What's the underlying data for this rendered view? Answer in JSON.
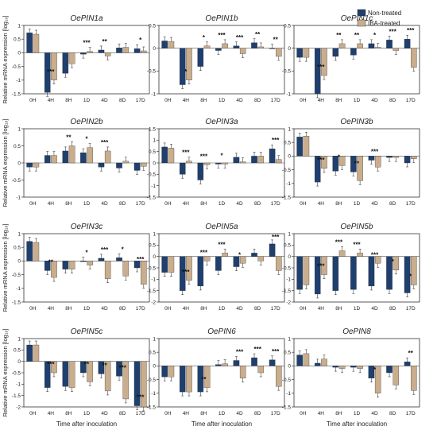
{
  "legend": {
    "items": [
      {
        "label": "Non-treated",
        "color": "#1f3f6e"
      },
      {
        "label": "IBA-treated",
        "color": "#c9ad8d"
      }
    ]
  },
  "chart_data": [
    {
      "type": "bar",
      "title": "OePIN1a",
      "categories": [
        "0H",
        "4H",
        "8H",
        "1D",
        "4D",
        "8D",
        "17D"
      ],
      "ylim": [
        -1.5,
        1
      ],
      "ticks": [
        "-1.5",
        "-1",
        "-0.5",
        "0",
        "0.5",
        "1"
      ],
      "series": [
        {
          "name": "Non-treated",
          "values": [
            0.73,
            -1.45,
            -0.75,
            -0.05,
            0.1,
            0.18,
            0.15
          ]
        },
        {
          "name": "IBA-treated",
          "values": [
            0.68,
            -1.0,
            -0.4,
            0.05,
            -0.12,
            0.2,
            0.07
          ]
        }
      ],
      "stars": [
        "",
        "***",
        "",
        "***",
        "**",
        "",
        "*"
      ]
    },
    {
      "type": "bar",
      "title": "OePIN1b",
      "categories": [
        "0H",
        "4H",
        "8H",
        "1D",
        "4D",
        "8D",
        "17D"
      ],
      "ylim": [
        -1,
        0.5
      ],
      "ticks": [
        "-1",
        "-0.5",
        "0",
        "0.5"
      ],
      "series": [
        {
          "name": "Non-treated",
          "values": [
            0.16,
            -0.8,
            -0.4,
            -0.05,
            0.05,
            0.12,
            0.0
          ]
        },
        {
          "name": "IBA-treated",
          "values": [
            0.15,
            -0.7,
            0.05,
            0.1,
            -0.12,
            0.03,
            -0.18
          ]
        }
      ],
      "stars": [
        "",
        "*",
        "*",
        "***",
        "***",
        "**",
        "**"
      ]
    },
    {
      "type": "bar",
      "title": "OePIN1c",
      "categories": [
        "0H",
        "4H",
        "8H",
        "1D",
        "4D",
        "8D",
        "17D"
      ],
      "ylim": [
        -1,
        0.5
      ],
      "ticks": [
        "-1",
        "-0.5",
        "0",
        "0.5"
      ],
      "series": [
        {
          "name": "Non-treated",
          "values": [
            -0.2,
            -1.0,
            -0.18,
            -0.15,
            0.1,
            0.18,
            0.2
          ]
        },
        {
          "name": "IBA-treated",
          "values": [
            -0.2,
            -0.6,
            0.1,
            0.1,
            0.02,
            -0.05,
            -0.42
          ]
        }
      ],
      "stars": [
        "",
        "***",
        "**",
        "**",
        "*",
        "***",
        "***"
      ]
    },
    {
      "type": "bar",
      "title": "OePIN2b",
      "categories": [
        "0H",
        "4H",
        "8H",
        "1D",
        "4D",
        "8D",
        "17D"
      ],
      "ylim": [
        -1,
        1
      ],
      "ticks": [
        "-1",
        "-0.5",
        "0",
        "0.5",
        "1"
      ],
      "series": [
        {
          "name": "Non-treated",
          "values": [
            -0.12,
            0.22,
            0.35,
            0.3,
            -0.12,
            -0.15,
            -0.22
          ]
        },
        {
          "name": "IBA-treated",
          "values": [
            -0.12,
            0.22,
            0.5,
            0.45,
            0.35,
            0.05,
            -0.1
          ]
        }
      ],
      "stars": [
        "",
        "",
        "**",
        "*",
        "***",
        "",
        ""
      ]
    },
    {
      "type": "bar",
      "title": "OePIN3a",
      "categories": [
        "0H",
        "4H",
        "8H",
        "1D",
        "4D",
        "8D",
        "17D"
      ],
      "ylim": [
        -1.5,
        1.5
      ],
      "ticks": [
        "-1.5",
        "-1",
        "-0.5",
        "0",
        "0.5",
        "1",
        "1.5"
      ],
      "series": [
        {
          "name": "Non-treated",
          "values": [
            0.7,
            -0.5,
            -0.75,
            -0.05,
            0.25,
            0.3,
            0.62
          ]
        },
        {
          "name": "IBA-treated",
          "values": [
            0.65,
            0.08,
            -0.08,
            -0.05,
            0.05,
            0.3,
            0.15
          ]
        }
      ],
      "stars": [
        "",
        "***",
        "***",
        "*",
        "",
        "",
        "***"
      ]
    },
    {
      "type": "bar",
      "title": "OePIN3b",
      "categories": [
        "0H",
        "4H",
        "8H",
        "1D",
        "4D",
        "8D",
        "17D"
      ],
      "ylim": [
        -1.5,
        1
      ],
      "ticks": [
        "-1.5",
        "-1",
        "-0.5",
        "0",
        "0.5",
        "1"
      ],
      "series": [
        {
          "name": "Non-treated",
          "values": [
            0.7,
            -0.95,
            -0.55,
            -0.58,
            -0.15,
            -0.05,
            -0.25
          ]
        },
        {
          "name": "IBA-treated",
          "values": [
            0.73,
            -0.45,
            -0.35,
            -0.9,
            -0.4,
            -0.05,
            -0.1
          ]
        }
      ],
      "stars": [
        "",
        "***",
        "*",
        "**",
        "***",
        "",
        ""
      ]
    },
    {
      "type": "bar",
      "title": "OePIN3c",
      "categories": [
        "0H",
        "4H",
        "8H",
        "1D",
        "4D",
        "8D",
        "17D"
      ],
      "ylim": [
        -1.5,
        1
      ],
      "ticks": [
        "-1.5",
        "-1",
        "-0.5",
        "0",
        "0.5",
        "1"
      ],
      "series": [
        {
          "name": "Non-treated",
          "values": [
            0.72,
            -0.35,
            -0.3,
            0.0,
            0.1,
            0.12,
            -0.25
          ]
        },
        {
          "name": "IBA-treated",
          "values": [
            0.68,
            -0.6,
            -0.3,
            -0.15,
            -0.65,
            -0.55,
            -0.85
          ]
        }
      ],
      "stars": [
        "",
        "**",
        "",
        "*",
        "***",
        "*",
        "***"
      ]
    },
    {
      "type": "bar",
      "title": "OePIN5a",
      "categories": [
        "0H",
        "4H",
        "8H",
        "1D",
        "4D",
        "8D",
        "17D"
      ],
      "ylim": [
        -2,
        1
      ],
      "ticks": [
        "-2",
        "-1.5",
        "-1",
        "-0.5",
        "0",
        "0.5",
        "1"
      ],
      "series": [
        {
          "name": "Non-treated",
          "values": [
            -0.7,
            -1.5,
            -1.3,
            -0.62,
            -0.45,
            0.15,
            0.55
          ]
        },
        {
          "name": "IBA-treated",
          "values": [
            -0.7,
            -1.05,
            -0.2,
            0.15,
            -0.3,
            -0.2,
            -0.62
          ]
        }
      ],
      "stars": [
        "",
        "***",
        "***",
        "***",
        "*",
        "",
        "***"
      ]
    },
    {
      "type": "bar",
      "title": "OePIN5b",
      "categories": [
        "0H",
        "4H",
        "8H",
        "1D",
        "4D",
        "8D",
        "17D"
      ],
      "ylim": [
        -2,
        1
      ],
      "ticks": [
        "-2",
        "-1.5",
        "-1",
        "-0.5",
        "0",
        "0.5",
        "1"
      ],
      "series": [
        {
          "name": "Non-treated",
          "values": [
            -1.45,
            -1.65,
            -1.5,
            -1.45,
            -1.3,
            -1.45,
            -1.6
          ]
        },
        {
          "name": "IBA-treated",
          "values": [
            -1.25,
            -0.8,
            0.25,
            0.15,
            -0.3,
            -0.6,
            -1.25
          ]
        }
      ],
      "stars": [
        "",
        "***",
        "***",
        "***",
        "***",
        "*",
        "*"
      ]
    },
    {
      "type": "bar",
      "title": "OePIN5c",
      "categories": [
        "0H",
        "4H",
        "8H",
        "1D",
        "4D",
        "8D",
        "17D"
      ],
      "ylim": [
        -2,
        1
      ],
      "ticks": [
        "-2",
        "-1.5",
        "-1",
        "-0.5",
        "0",
        "0.5",
        "1"
      ],
      "series": [
        {
          "name": "Non-treated",
          "values": [
            0.72,
            -1.15,
            -1.1,
            -0.5,
            -0.55,
            -0.65,
            -1.95
          ]
        },
        {
          "name": "IBA-treated",
          "values": [
            0.72,
            -0.5,
            -1.15,
            -0.9,
            -1.3,
            -1.65,
            -2.0
          ]
        }
      ],
      "stars": [
        "",
        "***",
        "",
        "**",
        "**",
        "***",
        "***"
      ]
    },
    {
      "type": "bar",
      "title": "OePIN6",
      "categories": [
        "0H",
        "4H",
        "8H",
        "1D",
        "4D",
        "8D",
        "17D"
      ],
      "ylim": [
        -1.5,
        1
      ],
      "ticks": [
        "-1.5",
        "-1",
        "-0.5",
        "0",
        "0.5",
        "1"
      ],
      "series": [
        {
          "name": "Non-treated",
          "values": [
            -0.4,
            -0.95,
            -0.95,
            0.05,
            0.2,
            0.3,
            0.22
          ]
        },
        {
          "name": "IBA-treated",
          "values": [
            -0.4,
            -0.95,
            -0.8,
            0.08,
            -0.45,
            -0.25,
            -0.75
          ]
        }
      ],
      "stars": [
        "",
        "",
        "**",
        "",
        "***",
        "***",
        "***"
      ]
    },
    {
      "type": "bar",
      "title": "OePIN8",
      "categories": [
        "0H",
        "4H",
        "8H",
        "1D",
        "4D",
        "8D",
        "17D"
      ],
      "ylim": [
        -1.5,
        1
      ],
      "ticks": [
        "-1.5",
        "-1",
        "-0.5",
        "0",
        "0.5",
        "1"
      ],
      "series": [
        {
          "name": "Non-treated",
          "values": [
            0.4,
            0.1,
            -0.05,
            -0.05,
            -0.45,
            -0.25,
            0.15
          ]
        },
        {
          "name": "IBA-treated",
          "values": [
            0.45,
            0.25,
            -0.1,
            -0.1,
            -1.0,
            -0.7,
            -0.9
          ]
        }
      ],
      "stars": [
        "",
        "",
        "",
        "",
        "*",
        "",
        "**"
      ]
    }
  ],
  "y_axis_label_html": "Relative mRNA expression [log₁₀]",
  "x_axis_label": "Time after inoculation"
}
